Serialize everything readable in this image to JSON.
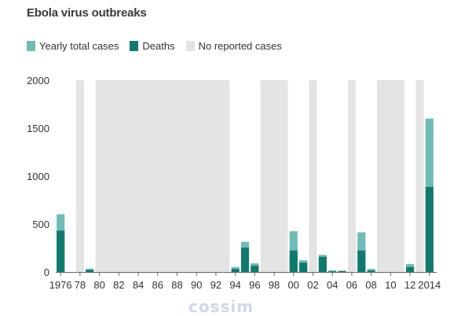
{
  "chart_data": {
    "type": "bar",
    "title": "Ebola virus outbreaks",
    "xlabel": "",
    "ylabel": "",
    "ylim": [
      0,
      2000
    ],
    "yticks": [
      0,
      500,
      1000,
      1500,
      2000
    ],
    "grid": false,
    "legend_position": "top-left",
    "legend": {
      "total": "Yearly total cases",
      "deaths": "Deaths",
      "none": "No reported cases"
    },
    "years": [
      1976,
      1977,
      1978,
      1979,
      1980,
      1981,
      1982,
      1983,
      1984,
      1985,
      1986,
      1987,
      1988,
      1989,
      1990,
      1991,
      1992,
      1993,
      1994,
      1995,
      1996,
      1997,
      1998,
      1999,
      2000,
      2001,
      2002,
      2003,
      2004,
      2005,
      2006,
      2007,
      2008,
      2009,
      2010,
      2011,
      2012,
      2013,
      2014
    ],
    "x_tick_labels": [
      "1976",
      "78",
      "80",
      "82",
      "84",
      "86",
      "88",
      "90",
      "92",
      "94",
      "96",
      "98",
      "00",
      "02",
      "04",
      "06",
      "08",
      "10",
      "12",
      "2014"
    ],
    "series": [
      {
        "name": "Yearly total cases",
        "values": [
          602,
          0,
          0,
          34,
          0,
          0,
          0,
          0,
          0,
          0,
          0,
          0,
          0,
          0,
          0,
          0,
          0,
          0,
          52,
          315,
          91,
          0,
          0,
          0,
          425,
          122,
          0,
          178,
          17,
          12,
          0,
          413,
          32,
          0,
          0,
          0,
          83,
          0,
          1600
        ]
      },
      {
        "name": "Deaths",
        "values": [
          431,
          0,
          0,
          22,
          0,
          0,
          0,
          0,
          0,
          0,
          0,
          0,
          0,
          0,
          0,
          0,
          0,
          0,
          31,
          254,
          66,
          0,
          0,
          0,
          224,
          97,
          0,
          157,
          7,
          10,
          0,
          224,
          15,
          0,
          0,
          0,
          51,
          0,
          887
        ]
      }
    ],
    "no_reported_cases_ranges": [
      [
        1978,
        1978
      ],
      [
        1980,
        1993
      ],
      [
        1997,
        1999
      ],
      [
        2002,
        2002
      ],
      [
        2006,
        2006
      ],
      [
        2009,
        2011
      ],
      [
        2013,
        2013
      ]
    ],
    "colors": {
      "total": "#6dbcb5",
      "deaths": "#117a6f",
      "none": "#e4e4e4",
      "axis": "#666666",
      "text": "#333333"
    }
  },
  "watermark": "cossim"
}
